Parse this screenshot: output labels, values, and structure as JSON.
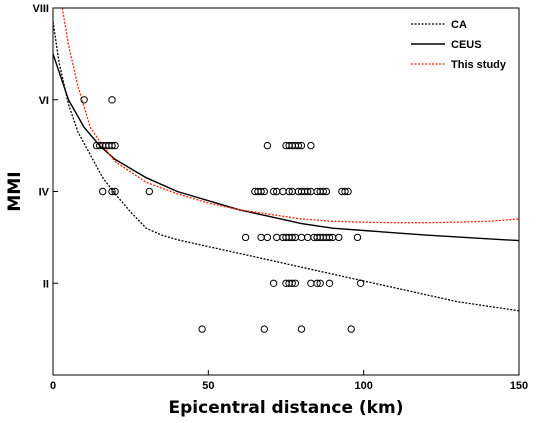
{
  "chart_data": {
    "type": "scatter",
    "xlabel": "Epicentral distance (km)",
    "ylabel": "MMI",
    "xlim": [
      0,
      150
    ],
    "ylim": [
      0,
      8
    ],
    "x_ticks": [
      {
        "value": 0,
        "label": "0"
      },
      {
        "value": 50,
        "label": "50"
      },
      {
        "value": 100,
        "label": "100"
      },
      {
        "value": 150,
        "label": "150"
      }
    ],
    "y_ticks": [
      {
        "value": 2,
        "label": "II"
      },
      {
        "value": 4,
        "label": "IV"
      },
      {
        "value": 6,
        "label": "VI"
      },
      {
        "value": 8,
        "label": "VIII"
      }
    ],
    "legend_position": "top-right",
    "grid": false,
    "series": [
      {
        "name": "CA",
        "kind": "line",
        "style": "dotted",
        "color": "#000000",
        "points": [
          [
            0,
            7.7
          ],
          [
            2,
            6.8
          ],
          [
            5,
            5.9
          ],
          [
            8,
            5.3
          ],
          [
            12,
            4.8
          ],
          [
            16,
            4.3
          ],
          [
            20,
            3.95
          ],
          [
            25,
            3.55
          ],
          [
            30,
            3.2
          ],
          [
            35,
            3.05
          ],
          [
            40,
            2.95
          ],
          [
            50,
            2.8
          ],
          [
            60,
            2.65
          ],
          [
            70,
            2.5
          ],
          [
            80,
            2.35
          ],
          [
            90,
            2.2
          ],
          [
            100,
            2.05
          ],
          [
            110,
            1.9
          ],
          [
            120,
            1.75
          ],
          [
            130,
            1.6
          ],
          [
            140,
            1.5
          ],
          [
            150,
            1.4
          ]
        ]
      },
      {
        "name": "CEUS",
        "kind": "line",
        "style": "solid",
        "color": "#000000",
        "points": [
          [
            0,
            7.0
          ],
          [
            2,
            6.6
          ],
          [
            5,
            6.0
          ],
          [
            10,
            5.4
          ],
          [
            15,
            5.0
          ],
          [
            20,
            4.7
          ],
          [
            30,
            4.3
          ],
          [
            40,
            4.0
          ],
          [
            50,
            3.8
          ],
          [
            60,
            3.6
          ],
          [
            70,
            3.45
          ],
          [
            80,
            3.3
          ],
          [
            90,
            3.2
          ],
          [
            100,
            3.15
          ],
          [
            120,
            3.05
          ],
          [
            140,
            2.97
          ],
          [
            150,
            2.93
          ]
        ]
      },
      {
        "name": "This study",
        "kind": "line",
        "style": "dotted",
        "color": "#ff2200",
        "points": [
          [
            3,
            8.0
          ],
          [
            5,
            7.2
          ],
          [
            8,
            6.3
          ],
          [
            12,
            5.4
          ],
          [
            16,
            5.0
          ],
          [
            20,
            4.65
          ],
          [
            30,
            4.2
          ],
          [
            40,
            3.95
          ],
          [
            50,
            3.75
          ],
          [
            60,
            3.6
          ],
          [
            70,
            3.5
          ],
          [
            80,
            3.4
          ],
          [
            90,
            3.35
          ],
          [
            100,
            3.33
          ],
          [
            110,
            3.32
          ],
          [
            120,
            3.32
          ],
          [
            130,
            3.33
          ],
          [
            140,
            3.35
          ],
          [
            150,
            3.4
          ]
        ]
      },
      {
        "name": "",
        "kind": "scatter",
        "marker": "circle-open",
        "color": "#000000",
        "points": [
          [
            10,
            6
          ],
          [
            19,
            6
          ],
          [
            14,
            5
          ],
          [
            15,
            5
          ],
          [
            16,
            5
          ],
          [
            17,
            5
          ],
          [
            18,
            5
          ],
          [
            19,
            5
          ],
          [
            20,
            5
          ],
          [
            69,
            5
          ],
          [
            75,
            5
          ],
          [
            76,
            5
          ],
          [
            77,
            5
          ],
          [
            78,
            5
          ],
          [
            79,
            5
          ],
          [
            80,
            5
          ],
          [
            83,
            5
          ],
          [
            16,
            4
          ],
          [
            19,
            4
          ],
          [
            20,
            4
          ],
          [
            31,
            4
          ],
          [
            65,
            4
          ],
          [
            66,
            4
          ],
          [
            67,
            4
          ],
          [
            68,
            4
          ],
          [
            71,
            4
          ],
          [
            72,
            4
          ],
          [
            74,
            4
          ],
          [
            76,
            4
          ],
          [
            77,
            4
          ],
          [
            79,
            4
          ],
          [
            80,
            4
          ],
          [
            81,
            4
          ],
          [
            82,
            4
          ],
          [
            83,
            4
          ],
          [
            85,
            4
          ],
          [
            86,
            4
          ],
          [
            87,
            4
          ],
          [
            88,
            4
          ],
          [
            93,
            4
          ],
          [
            94,
            4
          ],
          [
            95,
            4
          ],
          [
            62,
            3
          ],
          [
            67,
            3
          ],
          [
            69,
            3
          ],
          [
            72,
            3
          ],
          [
            74,
            3
          ],
          [
            75,
            3
          ],
          [
            76,
            3
          ],
          [
            77,
            3
          ],
          [
            78,
            3
          ],
          [
            80,
            3
          ],
          [
            82,
            3
          ],
          [
            84,
            3
          ],
          [
            85,
            3
          ],
          [
            86,
            3
          ],
          [
            87,
            3
          ],
          [
            88,
            3
          ],
          [
            89,
            3
          ],
          [
            90,
            3
          ],
          [
            92,
            3
          ],
          [
            98,
            3
          ],
          [
            71,
            2
          ],
          [
            75,
            2
          ],
          [
            76,
            2
          ],
          [
            77,
            2
          ],
          [
            78,
            2
          ],
          [
            83,
            2
          ],
          [
            85,
            2
          ],
          [
            86,
            2
          ],
          [
            89,
            2
          ],
          [
            99,
            2
          ],
          [
            48,
            1
          ],
          [
            68,
            1
          ],
          [
            80,
            1
          ],
          [
            96,
            1
          ]
        ]
      }
    ]
  }
}
